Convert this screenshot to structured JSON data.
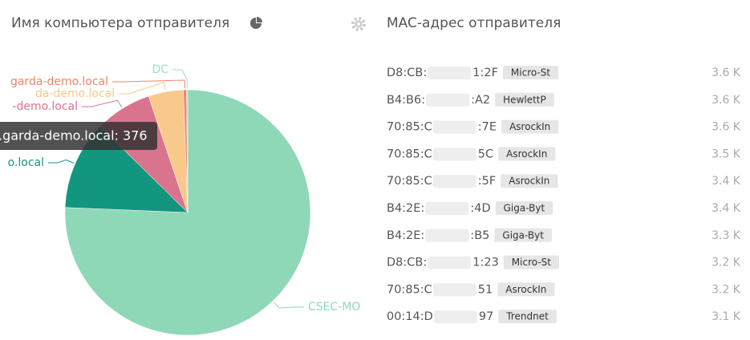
{
  "chart_data": {
    "type": "pie",
    "title": "Имя компьютера отправителя",
    "categories": [
      "CSEC-MO",
      "o.local",
      "-demo.local",
      "da-demo.local",
      "garda-demo.local",
      "DC"
    ],
    "values": [
      2430,
      376,
      240,
      148,
      13,
      5
    ],
    "colors": [
      "#8ed8b8",
      "#13967f",
      "#d9748e",
      "#f8c98a",
      "#f2836b",
      "#9fdcd3"
    ]
  },
  "tooltip": ".garda-demo.local: 376",
  "mac_panel": {
    "title": "MAC-адрес отправителя",
    "rows": [
      {
        "prefix": "D8:CB:",
        "suffix": "1:2F",
        "vendor": "Micro-St",
        "count": "3.6 K"
      },
      {
        "prefix": "B4:B6:",
        "suffix": ":A2",
        "vendor": "HewlettP",
        "count": "3.6 K"
      },
      {
        "prefix": "70:85:C",
        "suffix": ":7E",
        "vendor": "AsrockIn",
        "count": "3.6 K"
      },
      {
        "prefix": "70:85:C",
        "suffix": "5C",
        "vendor": "AsrockIn",
        "count": "3.5 K"
      },
      {
        "prefix": "70:85:C",
        "suffix": ":5F",
        "vendor": "AsrockIn",
        "count": "3.4 K"
      },
      {
        "prefix": "B4:2E:",
        "suffix": ":4D",
        "vendor": "Giga-Byt",
        "count": "3.4 K"
      },
      {
        "prefix": "B4:2E:",
        "suffix": ":B5",
        "vendor": "Giga-Byt",
        "count": "3.3 K"
      },
      {
        "prefix": "D8:CB:",
        "suffix": "1:23",
        "vendor": "Micro-St",
        "count": "3.2 K"
      },
      {
        "prefix": "70:85:C",
        "suffix": "51",
        "vendor": "AsrockIn",
        "count": "3.2 K"
      },
      {
        "prefix": "00:14:D",
        "suffix": "97",
        "vendor": "Trendnet",
        "count": "3.1 K"
      }
    ]
  }
}
